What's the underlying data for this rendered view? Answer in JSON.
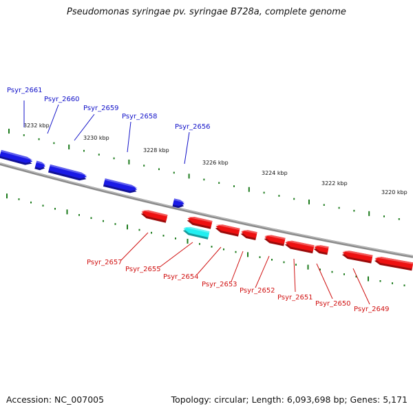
{
  "title": "Pseudomonas syringae pv. syringae B728a, complete genome",
  "footer": {
    "accession": "Accession: NC_007005",
    "summary": "Topology: circular; Length: 6,093,698 bp; Genes: 5,171"
  },
  "colors": {
    "forward": "#1a1ae6",
    "reverse": "#ee1111",
    "highlight": "#22eef0",
    "backbone": "#8a8a8a",
    "ticks": "#1a7a1a",
    "label_top": "#1010c8",
    "label_bottom": "#d01010"
  },
  "scale_labels": [
    "3232 kbp",
    "3230 kbp",
    "3228 kbp",
    "3226 kbp",
    "3224 kbp",
    "3222 kbp",
    "3220 kbp"
  ],
  "genes_top": [
    "Psyr_2661",
    "Psyr_2660",
    "Psyr_2659",
    "Psyr_2658",
    "Psyr_2656"
  ],
  "genes_bottom": [
    "Psyr_2657",
    "Psyr_2655",
    "Psyr_2654",
    "Psyr_2653",
    "Psyr_2652",
    "Psyr_2651",
    "Psyr_2650",
    "Psyr_2649"
  ]
}
